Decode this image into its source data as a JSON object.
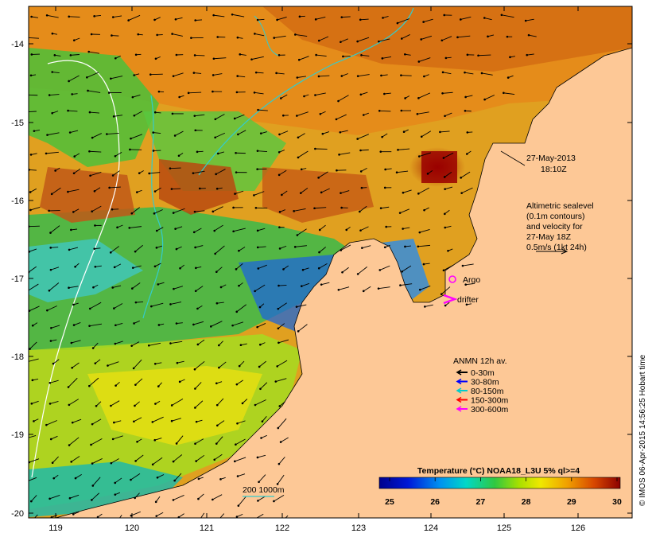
{
  "date_line1": "27-May-2013",
  "date_line2": "18:10Z",
  "altimetry": [
    "Altimetric sealevel",
    "(0.1m contours)",
    "and velocity for",
    "27-May 18Z",
    "0.5m/s (1kt 24h)"
  ],
  "argo_label": "Argo",
  "drifter_label": "drifter",
  "anmn": {
    "title": "ANMN 12h av.",
    "items": [
      {
        "label": "0-30m",
        "color": "#000000"
      },
      {
        "label": "30-80m",
        "color": "#0000ff"
      },
      {
        "label": "80-150m",
        "color": "#00cccc"
      },
      {
        "label": "150-300m",
        "color": "#ff0000"
      },
      {
        "label": "300-600m",
        "color": "#ff00ff"
      }
    ]
  },
  "isobath_label": "200  1000m",
  "colorbar": {
    "title": "Temperature (°C) NOAA18_L3U 5% ql>=4",
    "ticks": [
      "25",
      "26",
      "27",
      "28",
      "29",
      "30"
    ],
    "range": [
      25,
      30
    ]
  },
  "credit": "© IMOS 06-Apr-2015 14:56:25 Hobart time",
  "x_ticks": [
    "119",
    "120",
    "121",
    "122",
    "123",
    "124",
    "125",
    "126"
  ],
  "y_ticks": [
    "-14",
    "-15",
    "-16",
    "-17",
    "-18",
    "-19",
    "-20"
  ],
  "colors": {
    "land": "#fdc896",
    "argo": "#ff00ff",
    "isobath": "#33cccc"
  }
}
